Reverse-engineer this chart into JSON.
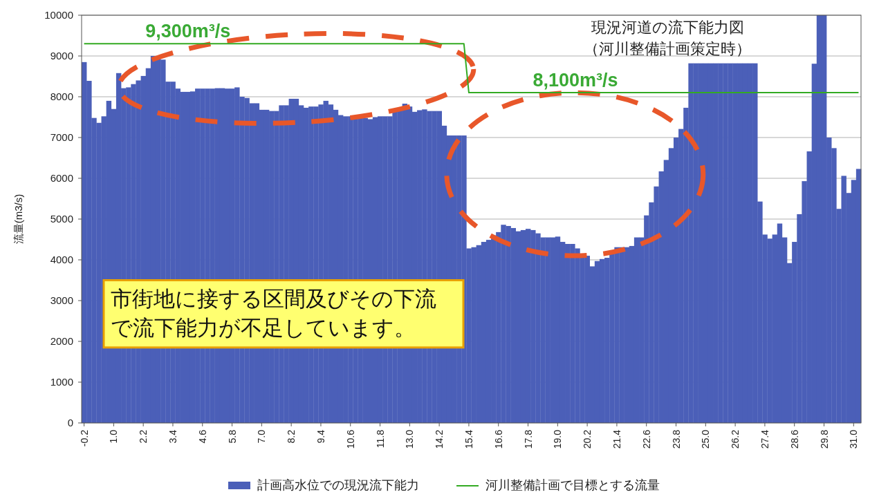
{
  "chart_data": {
    "type": "bar",
    "title": "現況河道の流下能力図",
    "subtitle": "（河川整備計画策定時）",
    "ylabel": "流量(m3/s)",
    "categories": [
      "-0.2",
      null,
      null,
      null,
      null,
      null,
      "1.0",
      null,
      null,
      null,
      null,
      null,
      "2.2",
      null,
      null,
      null,
      null,
      null,
      "3.4",
      null,
      null,
      null,
      null,
      null,
      "4.6",
      null,
      null,
      null,
      null,
      null,
      "5.8",
      null,
      null,
      null,
      null,
      null,
      "7.0",
      null,
      null,
      null,
      null,
      null,
      "8.2",
      null,
      null,
      null,
      null,
      null,
      "9.4",
      null,
      null,
      null,
      null,
      null,
      "10.6",
      null,
      null,
      null,
      null,
      null,
      "11.8",
      null,
      null,
      null,
      null,
      null,
      "13.0",
      null,
      null,
      null,
      null,
      null,
      "14.2",
      null,
      null,
      null,
      null,
      null,
      "15.4",
      null,
      null,
      null,
      null,
      null,
      "16.6",
      null,
      null,
      null,
      null,
      null,
      "17.8",
      null,
      null,
      null,
      null,
      null,
      "19.0",
      null,
      null,
      null,
      null,
      null,
      "20.2",
      null,
      null,
      null,
      null,
      null,
      "21.4",
      null,
      null,
      null,
      null,
      null,
      "22.6",
      null,
      null,
      null,
      null,
      null,
      "23.8",
      null,
      null,
      null,
      null,
      null,
      "25.0",
      null,
      null,
      null,
      null,
      null,
      "26.2",
      null,
      null,
      null,
      null,
      null,
      "27.4",
      null,
      null,
      null,
      null,
      null,
      "28.6",
      null,
      null,
      null,
      null,
      null,
      "29.8",
      null,
      null,
      null,
      null,
      null,
      "31.0",
      null
    ],
    "series": [
      {
        "name": "計画高水位での現況流下能力",
        "type": "bar",
        "color": "#4b5fb8",
        "values": [
          8850,
          8390,
          7480,
          7360,
          7520,
          7900,
          7700,
          8580,
          8210,
          8230,
          8310,
          8400,
          8510,
          8700,
          9000,
          8980,
          8910,
          8370,
          8370,
          8200,
          8120,
          8120,
          8130,
          8200,
          8200,
          8200,
          8200,
          8210,
          8210,
          8200,
          8200,
          8230,
          8000,
          7970,
          7840,
          7840,
          7680,
          7680,
          7650,
          7650,
          7790,
          7790,
          7950,
          7950,
          7790,
          7730,
          7760,
          7760,
          7810,
          7900,
          7810,
          7680,
          7550,
          7520,
          7520,
          7520,
          7500,
          7480,
          7450,
          7500,
          7520,
          7520,
          7520,
          7640,
          7730,
          7830,
          7760,
          7630,
          7670,
          7690,
          7650,
          7650,
          7650,
          7290,
          7050,
          7050,
          7050,
          7050,
          4280,
          4310,
          4360,
          4440,
          4490,
          4600,
          4680,
          4860,
          4830,
          4780,
          4700,
          4730,
          4760,
          4730,
          4650,
          4550,
          4550,
          4550,
          4570,
          4440,
          4390,
          4390,
          4280,
          4100,
          4100,
          3840,
          3970,
          4020,
          4050,
          4180,
          4310,
          4310,
          4310,
          4340,
          4550,
          4550,
          5090,
          5410,
          5800,
          6170,
          6450,
          6740,
          7000,
          7210,
          7730,
          8820,
          8820,
          8820,
          8820,
          8820,
          8820,
          8820,
          8820,
          8820,
          8820,
          8820,
          8820,
          8820,
          8820,
          5430,
          4620,
          4520,
          4620,
          4890,
          4550,
          3920,
          4440,
          5120,
          5930,
          6660,
          8810,
          10000,
          10000,
          7000,
          6740,
          5250,
          6060,
          5640,
          5960,
          6230
        ]
      },
      {
        "name": "河川整備計画で目標とする流量",
        "type": "line",
        "color": "#33aa22",
        "values": [
          9300,
          9300,
          9300,
          9300,
          9300,
          9300,
          9300,
          9300,
          9300,
          9300,
          9300,
          9300,
          9300,
          9300,
          9300,
          9300,
          9300,
          9300,
          9300,
          9300,
          9300,
          9300,
          9300,
          9300,
          9300,
          9300,
          9300,
          9300,
          9300,
          9300,
          9300,
          9300,
          9300,
          9300,
          9300,
          9300,
          9300,
          9300,
          9300,
          9300,
          9300,
          9300,
          9300,
          9300,
          9300,
          9300,
          9300,
          9300,
          9300,
          9300,
          9300,
          9300,
          9300,
          9300,
          9300,
          9300,
          9300,
          9300,
          9300,
          9300,
          9300,
          9300,
          9300,
          9300,
          9300,
          9300,
          9300,
          9300,
          9300,
          9300,
          9300,
          9300,
          9300,
          9300,
          9300,
          9300,
          9300,
          9300,
          8100,
          8100,
          8100,
          8100,
          8100,
          8100,
          8100,
          8100,
          8100,
          8100,
          8100,
          8100,
          8100,
          8100,
          8100,
          8100,
          8100,
          8100,
          8100,
          8100,
          8100,
          8100,
          8100,
          8100,
          8100,
          8100,
          8100,
          8100,
          8100,
          8100,
          8100,
          8100,
          8100,
          8100,
          8100,
          8100,
          8100,
          8100,
          8100,
          8100,
          8100,
          8100,
          8100,
          8100,
          8100,
          8100,
          8100,
          8100,
          8100,
          8100,
          8100,
          8100,
          8100,
          8100,
          8100,
          8100,
          8100,
          8100,
          8100,
          8100,
          8100,
          8100,
          8100,
          8100,
          8100,
          8100,
          8100,
          8100,
          8100,
          8100,
          8100,
          8100,
          8100,
          8100,
          8100,
          8100,
          8100,
          8100,
          8100,
          8100
        ]
      }
    ],
    "ylim": [
      0,
      10000
    ],
    "yticks": [
      0,
      1000,
      2000,
      3000,
      4000,
      5000,
      6000,
      7000,
      8000,
      9000,
      10000
    ],
    "grid": "y",
    "legend": "bottom",
    "annotations": [
      {
        "text": "9,300m³/s",
        "y": 9300
      },
      {
        "text": "8,100m³/s",
        "y": 8100
      },
      "市街地に接する区間及びその下流で流下能力が不足しています。"
    ]
  }
}
